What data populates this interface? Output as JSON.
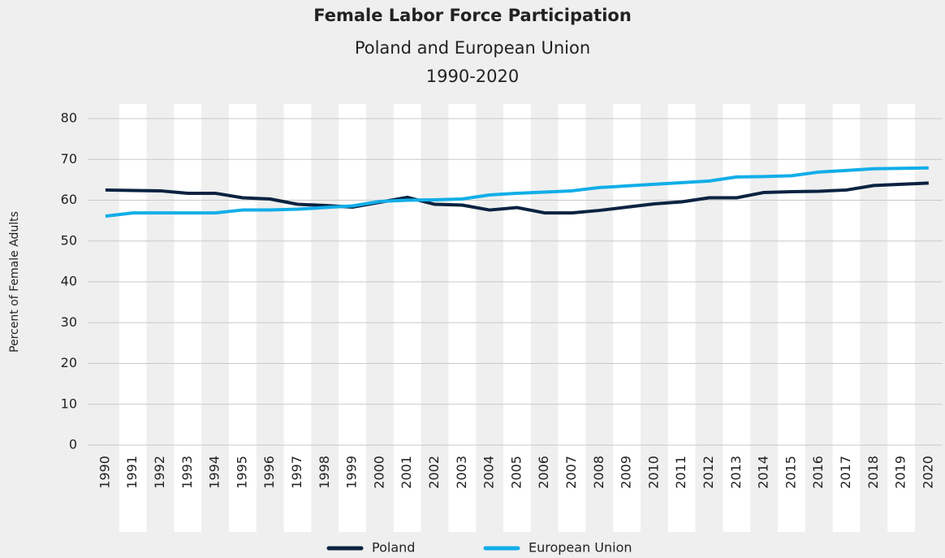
{
  "chart_data": {
    "type": "line",
    "title": "Female Labor Force Participation",
    "subtitle": [
      "Poland and European Union",
      "1990-2020"
    ],
    "ylabel": "Percent of Female Adults",
    "categories": [
      "1990",
      "1991",
      "1992",
      "1993",
      "1994",
      "1995",
      "1996",
      "1997",
      "1998",
      "1999",
      "2000",
      "2001",
      "2002",
      "2003",
      "2004",
      "2005",
      "2006",
      "2007",
      "2008",
      "2009",
      "2010",
      "2011",
      "2012",
      "2013",
      "2014",
      "2015",
      "2016",
      "2017",
      "2018",
      "2019",
      "2020"
    ],
    "series": [
      {
        "name": "Poland",
        "color": "#0b2341",
        "values": [
          62.5,
          62.4,
          62.3,
          61.7,
          61.7,
          60.6,
          60.3,
          59.0,
          58.7,
          58.3,
          59.5,
          60.7,
          59.0,
          58.8,
          57.6,
          58.2,
          56.9,
          56.9,
          57.5,
          58.3,
          59.1,
          59.6,
          60.6,
          60.6,
          61.9,
          62.1,
          62.2,
          62.5,
          63.6,
          63.9,
          64.2
        ]
      },
      {
        "name": "European Union",
        "color": "#12aee8",
        "values": [
          56.1,
          56.9,
          56.9,
          56.9,
          56.9,
          57.6,
          57.6,
          57.8,
          58.2,
          58.6,
          59.7,
          60.0,
          60.1,
          60.3,
          61.3,
          61.7,
          62.0,
          62.3,
          63.1,
          63.5,
          63.9,
          64.3,
          64.7,
          65.7,
          65.8,
          66.0,
          66.9,
          67.3,
          67.7,
          67.8,
          67.9
        ]
      }
    ],
    "ylim": [
      0,
      80
    ],
    "yticks": [
      0,
      10,
      20,
      30,
      40,
      50,
      60,
      70,
      80
    ],
    "grid": true,
    "legend": "bottom"
  }
}
